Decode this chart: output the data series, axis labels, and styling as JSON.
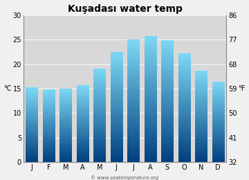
{
  "title": "Kuşadası water temp",
  "months": [
    "J",
    "F",
    "M",
    "A",
    "M",
    "J",
    "J",
    "A",
    "S",
    "O",
    "N",
    "D"
  ],
  "temps_c": [
    15.3,
    14.8,
    15.0,
    15.6,
    19.0,
    22.5,
    25.0,
    25.7,
    24.9,
    22.2,
    18.7,
    16.3
  ],
  "ylim_c": [
    0,
    30
  ],
  "yticks_c": [
    0,
    5,
    10,
    15,
    20,
    25,
    30
  ],
  "yticks_f": [
    32,
    41,
    50,
    59,
    68,
    77,
    86
  ],
  "ylabel_left": "°C",
  "ylabel_right": "°F",
  "color_top": "#7dd8f5",
  "color_bottom": "#003f7f",
  "fig_bg_color": "#f0f0f0",
  "plot_bg_color": "#d8d8d8",
  "watermark": "© www.seatemperature.org",
  "title_fontsize": 10,
  "label_fontsize": 7,
  "tick_fontsize": 7,
  "bar_width": 0.7,
  "num_grad": 200
}
